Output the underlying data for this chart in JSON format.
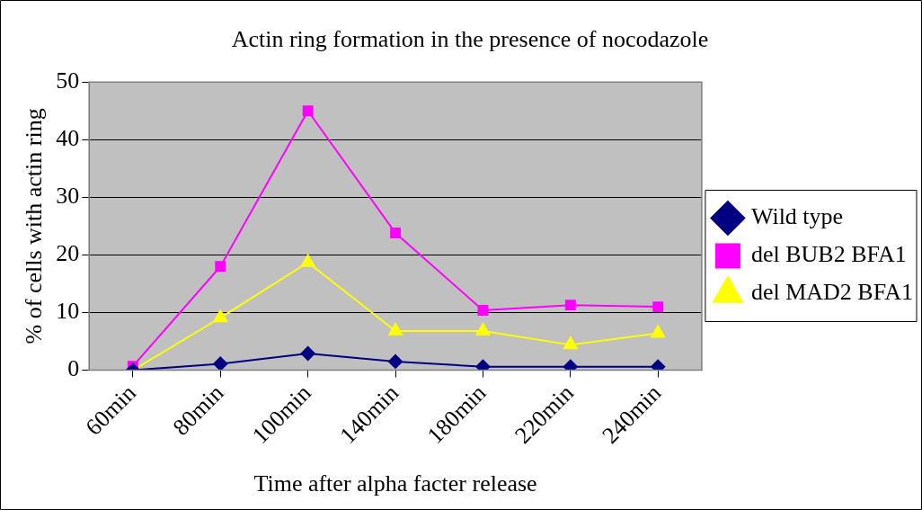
{
  "chart_data": {
    "type": "line",
    "title": "Actin ring formation in the presence of nocodazole",
    "xlabel": "Time after alpha facter release",
    "ylabel": "% of cells with actin ring",
    "categories": [
      "60min",
      "80min",
      "100min",
      "140min",
      "180min",
      "220min",
      "240min"
    ],
    "series": [
      {
        "name": "Wild type",
        "color": "#000080",
        "marker": "diamond",
        "values": [
          0,
          1.1,
          2.9,
          1.5,
          0.6,
          0.6,
          0.6
        ]
      },
      {
        "name": "del BUB2 BFA1",
        "color": "#ff00ff",
        "marker": "square",
        "values": [
          0.7,
          18,
          45,
          23.8,
          10.4,
          11.3,
          11
        ]
      },
      {
        "name": "del MAD2 BFA1",
        "color": "#ffff00",
        "marker": "triangle",
        "values": [
          0,
          9.1,
          18.7,
          6.8,
          6.8,
          4.4,
          6.4
        ]
      }
    ],
    "ylim": [
      0,
      50
    ],
    "yticks": [
      0,
      10,
      20,
      30,
      40,
      50
    ],
    "grid": "y",
    "legend": "right"
  }
}
